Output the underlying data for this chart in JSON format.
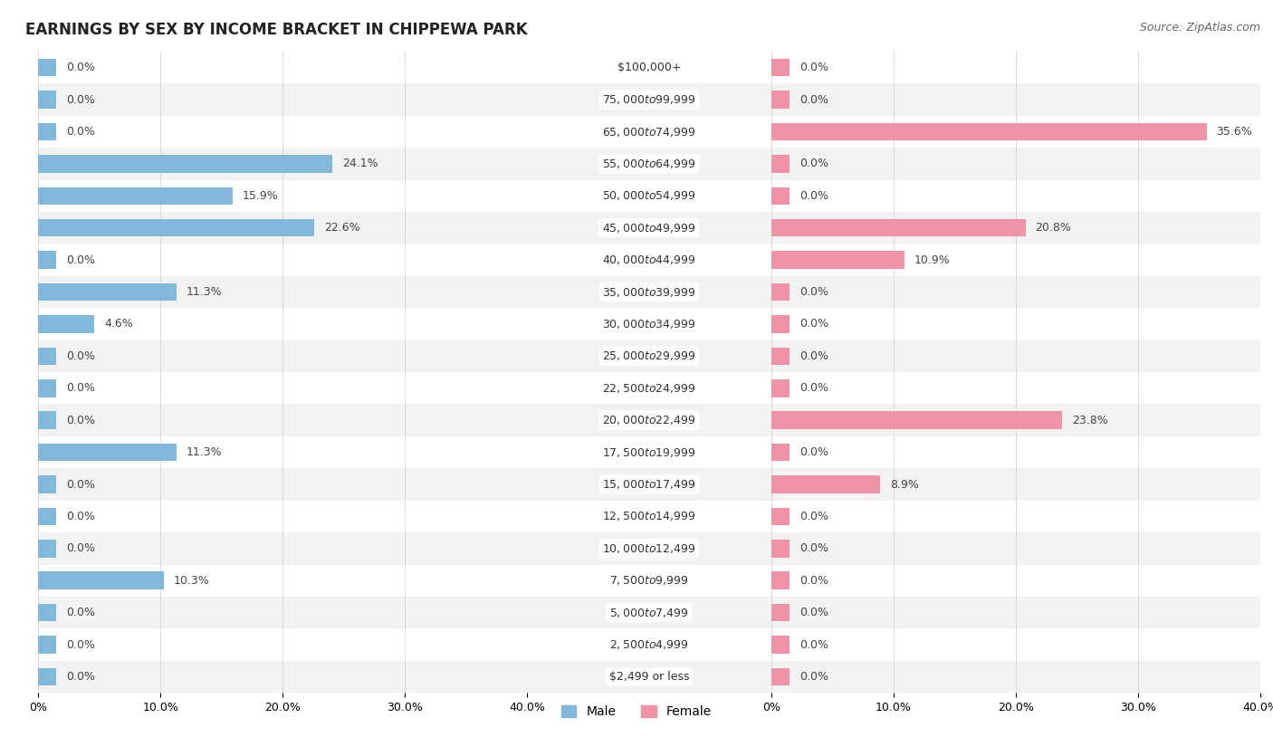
{
  "title": "EARNINGS BY SEX BY INCOME BRACKET IN CHIPPEWA PARK",
  "source": "Source: ZipAtlas.com",
  "categories": [
    "$2,499 or less",
    "$2,500 to $4,999",
    "$5,000 to $7,499",
    "$7,500 to $9,999",
    "$10,000 to $12,499",
    "$12,500 to $14,999",
    "$15,000 to $17,499",
    "$17,500 to $19,999",
    "$20,000 to $22,499",
    "$22,500 to $24,999",
    "$25,000 to $29,999",
    "$30,000 to $34,999",
    "$35,000 to $39,999",
    "$40,000 to $44,999",
    "$45,000 to $49,999",
    "$50,000 to $54,999",
    "$55,000 to $64,999",
    "$65,000 to $74,999",
    "$75,000 to $99,999",
    "$100,000+"
  ],
  "male_values": [
    0.0,
    0.0,
    0.0,
    10.3,
    0.0,
    0.0,
    0.0,
    11.3,
    0.0,
    0.0,
    0.0,
    4.6,
    11.3,
    0.0,
    22.6,
    15.9,
    24.1,
    0.0,
    0.0,
    0.0
  ],
  "female_values": [
    0.0,
    0.0,
    0.0,
    0.0,
    0.0,
    0.0,
    8.9,
    0.0,
    23.8,
    0.0,
    0.0,
    0.0,
    0.0,
    10.9,
    20.8,
    0.0,
    0.0,
    35.6,
    0.0,
    0.0
  ],
  "male_color": "#82b8d9",
  "female_color": "#f093a8",
  "male_label": "Male",
  "female_label": "Female",
  "xlim": 40.0,
  "min_bar": 1.5,
  "background_color": "#ffffff",
  "row_colors": [
    "#f2f2f2",
    "#ffffff"
  ],
  "title_fontsize": 12,
  "source_fontsize": 9,
  "label_fontsize": 9,
  "value_fontsize": 9,
  "axis_fontsize": 9
}
